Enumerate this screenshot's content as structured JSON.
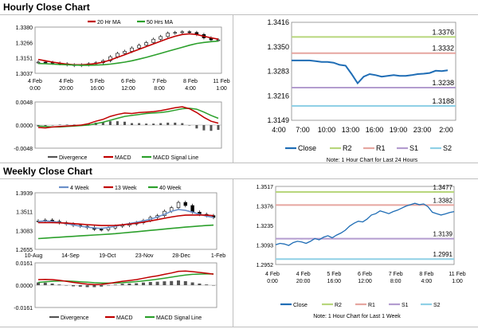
{
  "sections": {
    "hourly_title": "Hourly Close Chart",
    "weekly_title": "Weekly Close Chart"
  },
  "colors": {
    "close": "#1f6db5",
    "ma_red": "#c00000",
    "ma_green": "#2ca02c",
    "ma_blue": "#6a8fc8",
    "macd": "#c00000",
    "signal": "#2ca02c",
    "divergence": "#555555",
    "r2": "#b7d67c",
    "r1": "#e6a6a0",
    "s1": "#b39ccf",
    "s2": "#8fd0e6"
  },
  "chart_data": [
    {
      "id": "hourly_price",
      "type": "candlestick",
      "legend": [
        "20 Hr MA",
        "50 Hrs MA"
      ],
      "yticks": [
        "1.3380",
        "1.3266",
        "1.3151",
        "1.3037"
      ],
      "ylim": [
        1.3037,
        1.338
      ],
      "xticks": [
        [
          "4 Feb",
          "0:00"
        ],
        [
          "4 Feb",
          "20:00"
        ],
        [
          "5 Feb",
          "16:00"
        ],
        [
          "6 Feb",
          "12:00"
        ],
        [
          "7 Feb",
          "8:00"
        ],
        [
          "8 Feb",
          "4:00"
        ],
        [
          "11 Feb",
          "1:00"
        ]
      ],
      "close": [
        1.312,
        1.3118,
        1.3112,
        1.3108,
        1.31,
        1.3095,
        1.31,
        1.3108,
        1.3115,
        1.313,
        1.316,
        1.3185,
        1.32,
        1.3225,
        1.3245,
        1.3265,
        1.329,
        1.331,
        1.3335,
        1.334,
        1.3345,
        1.334,
        1.3325,
        1.33,
        1.3285,
        1.3285
      ],
      "series": [
        {
          "name": "20 Hr MA",
          "values": [
            1.314,
            1.313,
            1.312,
            1.3112,
            1.3105,
            1.31,
            1.31,
            1.3103,
            1.311,
            1.312,
            1.3135,
            1.3155,
            1.3175,
            1.3195,
            1.3215,
            1.3235,
            1.3255,
            1.3275,
            1.3295,
            1.3312,
            1.3325,
            1.333,
            1.3325,
            1.3312,
            1.33,
            1.329
          ]
        },
        {
          "name": "50 Hrs MA",
          "values": [
            1.311,
            1.3108,
            1.3105,
            1.3102,
            1.31,
            1.3098,
            1.3097,
            1.3097,
            1.3098,
            1.31,
            1.3105,
            1.3112,
            1.312,
            1.313,
            1.3142,
            1.3155,
            1.317,
            1.3185,
            1.32,
            1.3215,
            1.323,
            1.3245,
            1.3258,
            1.3266,
            1.3272,
            1.3276
          ]
        }
      ]
    },
    {
      "id": "hourly_macd",
      "type": "line+bar",
      "yticks": [
        "0.0048",
        "0.0000",
        "-0.0048"
      ],
      "ylim": [
        -0.0048,
        0.0048
      ],
      "legend": [
        "Divergence",
        "MACD",
        "MACD Signal Line"
      ],
      "macd": [
        -0.0005,
        -0.0006,
        -0.0004,
        -0.0003,
        -0.0002,
        -0.0001,
        0.0,
        0.0003,
        0.0008,
        0.0012,
        0.0018,
        0.0022,
        0.0025,
        0.0024,
        0.0026,
        0.0027,
        0.0028,
        0.003,
        0.0033,
        0.0036,
        0.0038,
        0.0034,
        0.0026,
        0.0016,
        0.0008,
        0.0004
      ],
      "signal": [
        -0.0002,
        -0.0003,
        -0.0004,
        -0.0004,
        -0.0003,
        -0.0002,
        -0.0001,
        0.0,
        0.0003,
        0.0006,
        0.001,
        0.0014,
        0.0018,
        0.002,
        0.0022,
        0.0024,
        0.0025,
        0.0026,
        0.0028,
        0.0031,
        0.0034,
        0.0035,
        0.0033,
        0.0027,
        0.002,
        0.0014
      ],
      "divergence": [
        -0.0003,
        -0.0003,
        0.0,
        0.0001,
        0.0001,
        0.0001,
        0.0001,
        0.0003,
        0.0005,
        0.0006,
        0.0008,
        0.0008,
        0.0007,
        0.0004,
        0.0004,
        0.0003,
        0.0003,
        0.0004,
        0.0005,
        0.0005,
        0.0004,
        -0.0001,
        -0.0007,
        -0.0011,
        -0.0012,
        -0.001
      ]
    },
    {
      "id": "hourly_pivot",
      "type": "line",
      "yticks": [
        "1.3416",
        "1.3350",
        "1.3283",
        "1.3216",
        "1.3149"
      ],
      "ylim": [
        1.3149,
        1.3416
      ],
      "xticks": [
        "4:00",
        "7:00",
        "10:00",
        "13:00",
        "16:00",
        "19:00",
        "23:00",
        "2:00"
      ],
      "levels": [
        {
          "name": "R2",
          "value": 1.3376,
          "label": "1.3376"
        },
        {
          "name": "R1",
          "value": 1.3332,
          "label": "1.3332"
        },
        {
          "name": "S1",
          "value": 1.3238,
          "label": "1.3238"
        },
        {
          "name": "S2",
          "value": 1.3188,
          "label": "1.3188"
        }
      ],
      "close": [
        1.3312,
        1.3312,
        1.3312,
        1.3312,
        1.331,
        1.3308,
        1.3308,
        1.3306,
        1.33,
        1.3298,
        1.3275,
        1.325,
        1.3268,
        1.3275,
        1.3272,
        1.3268,
        1.327,
        1.3272,
        1.327,
        1.327,
        1.3272,
        1.3275,
        1.3276,
        1.3278,
        1.3284,
        1.3283,
        1.3285
      ],
      "legend": [
        "Close",
        "R2",
        "R1",
        "S1",
        "S2"
      ],
      "note": "Note: 1 Hour Chart for Last 24 Hours"
    },
    {
      "id": "weekly_price",
      "type": "candlestick",
      "legend": [
        "4 Week",
        "13 Week",
        "40 Week"
      ],
      "yticks": [
        "1.3939",
        "1.3511",
        "1.3083",
        "1.2655"
      ],
      "ylim": [
        1.2655,
        1.3939
      ],
      "xticks": [
        "10-Aug",
        "14-Sep",
        "19-Oct",
        "23-Nov",
        "28-Dec",
        "1-Feb"
      ],
      "close": [
        1.33,
        1.332,
        1.329,
        1.326,
        1.323,
        1.32,
        1.318,
        1.315,
        1.311,
        1.31,
        1.314,
        1.318,
        1.32,
        1.323,
        1.326,
        1.331,
        1.338,
        1.342,
        1.352,
        1.36,
        1.372,
        1.365,
        1.35,
        1.345,
        1.342,
        1.338
      ],
      "series": [
        {
          "name": "4 Week",
          "values": [
            1.329,
            1.33,
            1.329,
            1.327,
            1.324,
            1.321,
            1.318,
            1.316,
            1.314,
            1.313,
            1.315,
            1.318,
            1.321,
            1.324,
            1.327,
            1.33,
            1.334,
            1.339,
            1.345,
            1.352,
            1.356,
            1.354,
            1.35,
            1.345,
            1.341,
            1.338
          ]
        },
        {
          "name": "13 Week",
          "values": [
            1.326,
            1.3262,
            1.3262,
            1.3258,
            1.325,
            1.324,
            1.3228,
            1.3215,
            1.3205,
            1.3195,
            1.3195,
            1.32,
            1.3212,
            1.3228,
            1.3248,
            1.3272,
            1.33,
            1.333,
            1.336,
            1.339,
            1.3415,
            1.343,
            1.3435,
            1.3435,
            1.343,
            1.342
          ]
        },
        {
          "name": "40 Week",
          "values": [
            1.29,
            1.291,
            1.292,
            1.293,
            1.294,
            1.295,
            1.296,
            1.297,
            1.298,
            1.299,
            1.3,
            1.3012,
            1.3025,
            1.304,
            1.3055,
            1.307,
            1.3085,
            1.31,
            1.3115,
            1.313,
            1.3145,
            1.316,
            1.3172,
            1.3185,
            1.3195,
            1.3205
          ]
        }
      ]
    },
    {
      "id": "weekly_macd",
      "type": "line+bar",
      "yticks": [
        "0.0161",
        "0.0000",
        "-0.0161"
      ],
      "ylim": [
        -0.0161,
        0.0161
      ],
      "legend": [
        "Divergence",
        "MACD",
        "MACD Signal Line"
      ],
      "macd": [
        0.004,
        0.0042,
        0.004,
        0.0035,
        0.0028,
        0.002,
        0.0014,
        0.0008,
        0.0004,
        0.0006,
        0.0012,
        0.002,
        0.0028,
        0.0034,
        0.004,
        0.005,
        0.006,
        0.0068,
        0.0078,
        0.0088,
        0.01,
        0.0102,
        0.0098,
        0.0092,
        0.0086,
        0.008
      ],
      "signal": [
        0.002,
        0.0024,
        0.0028,
        0.003,
        0.003,
        0.0028,
        0.0025,
        0.0022,
        0.0018,
        0.0016,
        0.0015,
        0.0016,
        0.0018,
        0.0022,
        0.0026,
        0.0031,
        0.0037,
        0.0043,
        0.005,
        0.0058,
        0.0066,
        0.0073,
        0.0078,
        0.008,
        0.0081,
        0.0081
      ],
      "divergence": [
        0.002,
        0.0018,
        0.0012,
        0.0005,
        -0.0002,
        -0.0008,
        -0.0011,
        -0.0014,
        -0.0014,
        -0.001,
        -0.0003,
        0.0004,
        0.001,
        0.0012,
        0.0014,
        0.0019,
        0.0023,
        0.0025,
        0.0028,
        0.003,
        0.0034,
        0.0029,
        0.002,
        0.0012,
        0.0005,
        -0.0001
      ]
    },
    {
      "id": "weekly_pivot",
      "type": "line",
      "yticks": [
        "1.3517",
        "1.3376",
        "1.3235",
        "1.3093",
        "1.2952"
      ],
      "ylim": [
        1.2952,
        1.3517
      ],
      "xticks": [
        [
          "4 Feb",
          "0:00"
        ],
        [
          "4 Feb",
          "20:00"
        ],
        [
          "5 Feb",
          "16:00"
        ],
        [
          "6 Feb",
          "12:00"
        ],
        [
          "7 Feb",
          "8:00"
        ],
        [
          "8 Feb",
          "4:00"
        ],
        [
          "11 Feb",
          "1:00"
        ]
      ],
      "levels": [
        {
          "name": "R2",
          "value": 1.3477,
          "label": "1.3477"
        },
        {
          "name": "R1",
          "value": 1.3382,
          "label": "1.3382"
        },
        {
          "name": "S1",
          "value": 1.3139,
          "label": "1.3139"
        },
        {
          "name": "S2",
          "value": 1.2991,
          "label": "1.2991"
        }
      ],
      "close": [
        1.3095,
        1.3105,
        1.31,
        1.309,
        1.311,
        1.312,
        1.3115,
        1.3105,
        1.312,
        1.314,
        1.313,
        1.315,
        1.316,
        1.3145,
        1.3165,
        1.318,
        1.32,
        1.323,
        1.325,
        1.3265,
        1.326,
        1.328,
        1.331,
        1.332,
        1.334,
        1.333,
        1.332,
        1.3335,
        1.3345,
        1.336,
        1.3375,
        1.3385,
        1.3395,
        1.3385,
        1.339,
        1.337,
        1.333,
        1.332,
        1.331,
        1.3318,
        1.3328,
        1.3335
      ],
      "legend": [
        "Close",
        "R2",
        "R1",
        "S1",
        "S2"
      ],
      "note": "Note: 1 Hour Chart for Last 1 Week"
    }
  ]
}
